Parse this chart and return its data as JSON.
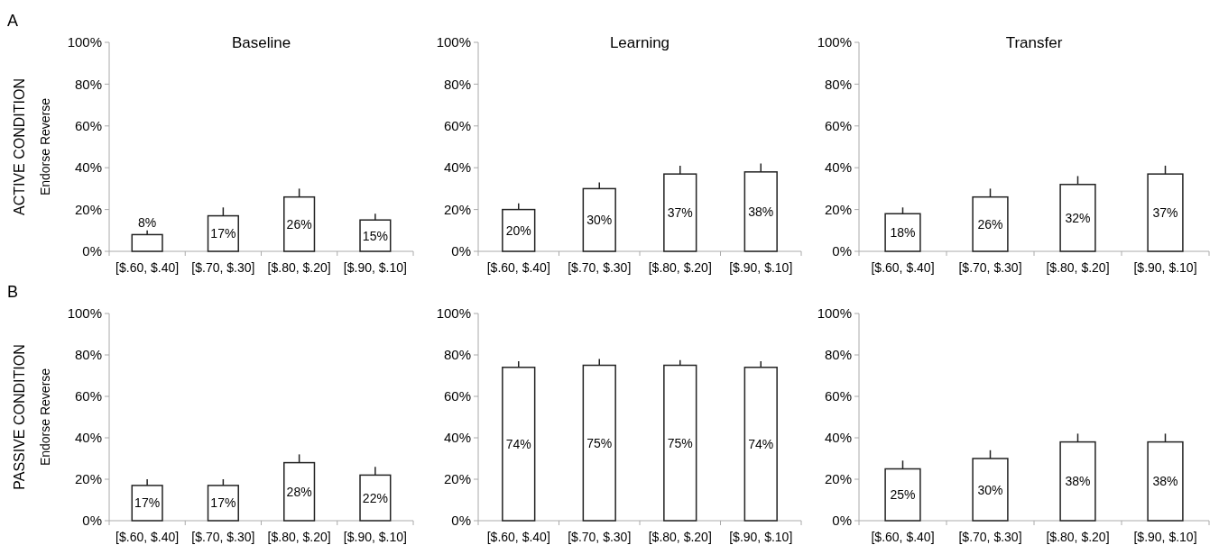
{
  "chart_data": [
    {
      "type": "bar",
      "title": "Baseline",
      "ylabel": "Endorse Reverse",
      "annotations": [
        "A",
        "ACTIVE CONDITION"
      ],
      "categories": [
        "[$.60, $.40]",
        "[$.70, $.30]",
        "[$.80, $.20]",
        "[$.90, $.10]"
      ],
      "values": [
        8,
        17,
        26,
        15
      ],
      "value_labels": [
        "8%",
        "17%",
        "26%",
        "15%"
      ],
      "errors": [
        [
          8,
          10
        ],
        [
          17,
          21
        ],
        [
          26,
          30
        ],
        [
          15,
          18
        ]
      ],
      "color": "#ffffff",
      "ylim": [
        0,
        100
      ],
      "yticks": [
        {
          "value": 0,
          "label": "0%"
        },
        {
          "value": 20,
          "label": "20%"
        },
        {
          "value": 40,
          "label": "40%"
        },
        {
          "value": 60,
          "label": "60%"
        },
        {
          "value": 80,
          "label": "80%"
        },
        {
          "value": 100,
          "label": "100%"
        }
      ]
    },
    {
      "type": "bar",
      "title": "Learning",
      "categories": [
        "[$.60, $.40]",
        "[$.70, $.30]",
        "[$.80, $.20]",
        "[$.90, $.10]"
      ],
      "values": [
        20,
        30,
        37,
        38
      ],
      "value_labels": [
        "20%",
        "30%",
        "37%",
        "38%"
      ],
      "errors": [
        [
          20,
          23
        ],
        [
          30,
          33
        ],
        [
          37,
          41
        ],
        [
          38,
          42
        ]
      ],
      "color": "#ffffff",
      "ylim": [
        0,
        100
      ],
      "yticks": [
        {
          "value": 0,
          "label": "0%"
        },
        {
          "value": 20,
          "label": "20%"
        },
        {
          "value": 40,
          "label": "40%"
        },
        {
          "value": 60,
          "label": "60%"
        },
        {
          "value": 80,
          "label": "80%"
        },
        {
          "value": 100,
          "label": "100%"
        }
      ]
    },
    {
      "type": "bar",
      "title": "Transfer",
      "categories": [
        "[$.60, $.40]",
        "[$.70, $.30]",
        "[$.80, $.20]",
        "[$.90, $.10]"
      ],
      "values": [
        18,
        26,
        32,
        37
      ],
      "value_labels": [
        "18%",
        "26%",
        "32%",
        "37%"
      ],
      "errors": [
        [
          18,
          21
        ],
        [
          26,
          30
        ],
        [
          32,
          36
        ],
        [
          37,
          41
        ]
      ],
      "color": "#ffffff",
      "ylim": [
        0,
        100
      ],
      "yticks": [
        {
          "value": 0,
          "label": "0%"
        },
        {
          "value": 20,
          "label": "20%"
        },
        {
          "value": 40,
          "label": "40%"
        },
        {
          "value": 60,
          "label": "60%"
        },
        {
          "value": 80,
          "label": "80%"
        },
        {
          "value": 100,
          "label": "100%"
        }
      ]
    },
    {
      "type": "bar",
      "ylabel": "Endorse Reverse",
      "annotations": [
        "B",
        "PASSIVE CONDITION"
      ],
      "categories": [
        "[$.60, $.40]",
        "[$.70, $.30]",
        "[$.80, $.20]",
        "[$.90, $.10]"
      ],
      "values": [
        17,
        17,
        28,
        22
      ],
      "value_labels": [
        "17%",
        "17%",
        "28%",
        "22%"
      ],
      "errors": [
        [
          17,
          20
        ],
        [
          17,
          20
        ],
        [
          28,
          32
        ],
        [
          22,
          26
        ]
      ],
      "color": "#ffffff",
      "ylim": [
        0,
        100
      ],
      "yticks": [
        {
          "value": 0,
          "label": "0%"
        },
        {
          "value": 20,
          "label": "20%"
        },
        {
          "value": 40,
          "label": "40%"
        },
        {
          "value": 60,
          "label": "60%"
        },
        {
          "value": 80,
          "label": "80%"
        },
        {
          "value": 100,
          "label": "100%"
        }
      ]
    },
    {
      "type": "bar",
      "categories": [
        "[$.60, $.40]",
        "[$.70, $.30]",
        "[$.80, $.20]",
        "[$.90, $.10]"
      ],
      "values": [
        74,
        75,
        75,
        74
      ],
      "value_labels": [
        "74%",
        "75%",
        "75%",
        "74%"
      ],
      "errors": [
        [
          74,
          77
        ],
        [
          75,
          78
        ],
        [
          75,
          77.5
        ],
        [
          74,
          77
        ]
      ],
      "color": "#ffffff",
      "ylim": [
        0,
        100
      ],
      "yticks": [
        {
          "value": 0,
          "label": "0%"
        },
        {
          "value": 20,
          "label": "20%"
        },
        {
          "value": 40,
          "label": "40%"
        },
        {
          "value": 60,
          "label": "60%"
        },
        {
          "value": 80,
          "label": "80%"
        },
        {
          "value": 100,
          "label": "100%"
        }
      ]
    },
    {
      "type": "bar",
      "categories": [
        "[$.60, $.40]",
        "[$.70, $.30]",
        "[$.80, $.20]",
        "[$.90, $.10]"
      ],
      "values": [
        25,
        30,
        38,
        38
      ],
      "value_labels": [
        "25%",
        "30%",
        "38%",
        "38%"
      ],
      "errors": [
        [
          25,
          29
        ],
        [
          30,
          34
        ],
        [
          38,
          42
        ],
        [
          38,
          42
        ]
      ],
      "color": "#ffffff",
      "ylim": [
        0,
        100
      ],
      "yticks": [
        {
          "value": 0,
          "label": "0%"
        },
        {
          "value": 20,
          "label": "20%"
        },
        {
          "value": 40,
          "label": "40%"
        },
        {
          "value": 60,
          "label": "60%"
        },
        {
          "value": 80,
          "label": "80%"
        },
        {
          "value": 100,
          "label": "100%"
        }
      ]
    }
  ]
}
